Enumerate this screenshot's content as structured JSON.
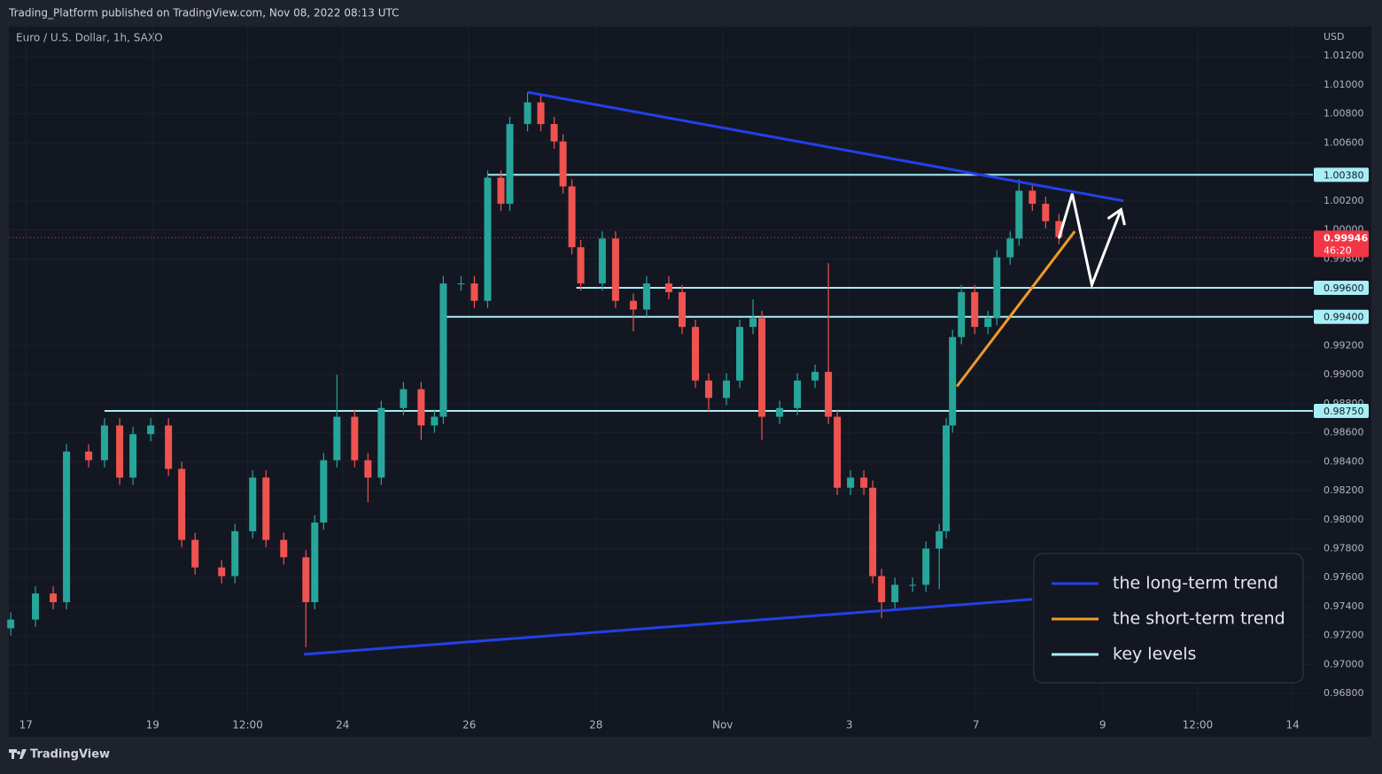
{
  "header": {
    "publisher": "Trading_Platform published on TradingView.com, Nov 08, 2022 08:13 UTC",
    "footer": "TradingView"
  },
  "chart_data": {
    "type": "candlestick",
    "title": "Euro / U.S. Dollar, 1h, SAXO",
    "y_axis_unit": "USD",
    "x": [
      -0.24,
      0.15,
      0.43,
      0.64,
      0.99,
      1.24,
      1.48,
      1.69,
      1.97,
      2.25,
      2.46,
      2.67,
      3.09,
      3.3,
      3.58,
      3.79,
      4.07,
      4.42,
      4.56,
      4.7,
      4.91,
      5.19,
      5.4,
      5.61,
      5.96,
      6.24,
      6.45,
      6.59,
      6.87,
      7.08,
      7.29,
      7.5,
      7.64,
      7.92,
      8.13,
      8.34,
      8.48,
      8.62,
      8.76,
      9.1,
      9.31,
      9.59,
      9.8,
      10.15,
      10.36,
      10.57,
      10.78,
      11.06,
      11.27,
      11.48,
      11.62,
      11.9,
      12.18,
      12.46,
      12.67,
      12.81,
      13.02,
      13.23,
      13.37,
      13.51,
      13.72,
      14.0,
      14.21,
      14.42,
      14.53,
      14.63,
      14.77,
      14.98,
      15.19,
      15.33,
      15.54,
      15.68,
      15.89,
      16.1,
      16.31
    ],
    "open": [
      0.9725,
      0.9731,
      0.9749,
      0.9743,
      0.9847,
      0.9841,
      0.9865,
      0.9829,
      0.9859,
      0.9865,
      0.9835,
      0.9786,
      0.9767,
      0.9761,
      0.9792,
      0.9829,
      0.9786,
      0.9774,
      0.9743,
      0.9798,
      0.9841,
      0.9871,
      0.9841,
      0.9829,
      0.9877,
      0.989,
      0.9865,
      0.9871,
      0.9963,
      0.9963,
      0.9951,
      1.0036,
      1.0018,
      1.0073,
      1.0088,
      1.0073,
      1.0061,
      1.003,
      0.9988,
      0.9963,
      0.9994,
      0.9951,
      0.9945,
      0.9963,
      0.9957,
      0.9933,
      0.9896,
      0.9884,
      0.9896,
      0.9933,
      0.9939,
      0.9871,
      0.9877,
      0.9896,
      0.9902,
      0.9871,
      0.9822,
      0.9829,
      0.9822,
      0.9761,
      0.9743,
      0.9755,
      0.9755,
      0.978,
      0.9792,
      0.9865,
      0.9926,
      0.9957,
      0.9933,
      0.9939,
      0.9981,
      0.9994,
      1.0027,
      1.0018,
      1.0006
    ],
    "high": [
      0.9736,
      0.9754,
      0.9754,
      0.9852,
      0.9852,
      0.987,
      0.987,
      0.9864,
      0.987,
      0.987,
      0.984,
      0.9791,
      0.9772,
      0.9797,
      0.9834,
      0.9834,
      0.9791,
      0.9779,
      0.9803,
      0.9846,
      0.99,
      0.9876,
      0.9846,
      0.9882,
      0.9895,
      0.9895,
      0.9876,
      0.9968,
      0.9968,
      0.9968,
      1.0041,
      1.0041,
      1.0078,
      1.0095,
      1.0093,
      1.0078,
      1.0066,
      1.0035,
      0.9993,
      0.9999,
      0.9999,
      0.9956,
      0.9968,
      0.9968,
      0.9962,
      0.9938,
      0.9901,
      0.9901,
      0.9938,
      0.9952,
      0.9944,
      0.9882,
      0.9901,
      0.9907,
      0.9977,
      0.9876,
      0.9834,
      0.9834,
      0.9827,
      0.9766,
      0.976,
      0.976,
      0.9785,
      0.9797,
      0.987,
      0.9931,
      0.9962,
      0.9962,
      0.9944,
      0.9986,
      0.9999,
      1.0035,
      1.0032,
      1.0023,
      1.0011
    ],
    "low": [
      0.972,
      0.9726,
      0.9738,
      0.9738,
      0.9836,
      0.9836,
      0.9824,
      0.9824,
      0.9854,
      0.983,
      0.9781,
      0.9762,
      0.9756,
      0.9756,
      0.9787,
      0.9781,
      0.9769,
      0.9712,
      0.9738,
      0.9793,
      0.9836,
      0.9836,
      0.9812,
      0.9824,
      0.9872,
      0.9855,
      0.986,
      0.9866,
      0.9958,
      0.9946,
      0.9946,
      1.0013,
      1.0013,
      1.0068,
      1.0068,
      1.0056,
      1.0025,
      0.9983,
      0.9958,
      0.9958,
      0.9946,
      0.993,
      0.994,
      0.9952,
      0.9928,
      0.9891,
      0.9875,
      0.9879,
      0.9891,
      0.9928,
      0.9855,
      0.9866,
      0.9872,
      0.9891,
      0.9866,
      0.9817,
      0.9817,
      0.9817,
      0.9756,
      0.9732,
      0.9738,
      0.975,
      0.975,
      0.9752,
      0.9787,
      0.986,
      0.9921,
      0.9928,
      0.9928,
      0.9934,
      0.9976,
      0.9989,
      1.0013,
      1.0001,
      0.999
    ],
    "close": [
      0.9731,
      0.9749,
      0.9743,
      0.9847,
      0.9841,
      0.9865,
      0.9829,
      0.9859,
      0.9865,
      0.9835,
      0.9786,
      0.9767,
      0.9761,
      0.9792,
      0.9829,
      0.9786,
      0.9774,
      0.9743,
      0.9798,
      0.9841,
      0.9871,
      0.9841,
      0.9829,
      0.9877,
      0.989,
      0.9865,
      0.9871,
      0.9963,
      0.9963,
      0.9951,
      1.0036,
      1.0018,
      1.0073,
      1.0088,
      1.0073,
      1.0061,
      1.003,
      0.9988,
      0.9963,
      0.9994,
      0.9951,
      0.9945,
      0.9963,
      0.9957,
      0.9933,
      0.9896,
      0.9884,
      0.9896,
      0.9933,
      0.9939,
      0.9871,
      0.9877,
      0.9896,
      0.9902,
      0.9871,
      0.9822,
      0.9829,
      0.9822,
      0.9761,
      0.9743,
      0.9755,
      0.9755,
      0.978,
      0.9792,
      0.9865,
      0.9926,
      0.9957,
      0.9933,
      0.9939,
      0.9981,
      0.9994,
      1.0027,
      1.0018,
      1.0006,
      0.9995
    ],
    "up_color": "#26a69a",
    "down_color": "#ef5350",
    "xlim": [
      -0.27,
      20.32
    ],
    "xticks": [
      {
        "value": 0,
        "label": "17"
      },
      {
        "value": 2,
        "label": "19"
      },
      {
        "value": 3.5,
        "label": "12:00"
      },
      {
        "value": 5,
        "label": "24"
      },
      {
        "value": 7,
        "label": "26"
      },
      {
        "value": 9,
        "label": "28"
      },
      {
        "value": 11,
        "label": "Nov"
      },
      {
        "value": 13,
        "label": "3"
      },
      {
        "value": 15,
        "label": "7"
      },
      {
        "value": 17,
        "label": "9"
      },
      {
        "value": 18.5,
        "label": "12:00"
      },
      {
        "value": 20,
        "label": "14"
      }
    ],
    "ylim": [
      0.96666,
      1.01403
    ],
    "yticks": [
      {
        "value": 1.012,
        "label": "1.01200"
      },
      {
        "value": 1.01,
        "label": "1.01000"
      },
      {
        "value": 1.008,
        "label": "1.00800"
      },
      {
        "value": 1.006,
        "label": "1.00600"
      },
      {
        "value": 1.002,
        "label": "1.00200"
      },
      {
        "value": 1.0,
        "label": "1.00000"
      },
      {
        "value": 0.998,
        "label": "0.99800"
      },
      {
        "value": 0.992,
        "label": "0.99200"
      },
      {
        "value": 0.99,
        "label": "0.99000"
      },
      {
        "value": 0.988,
        "label": "0.98800"
      },
      {
        "value": 0.986,
        "label": "0.98600"
      },
      {
        "value": 0.984,
        "label": "0.98400"
      },
      {
        "value": 0.982,
        "label": "0.98200"
      },
      {
        "value": 0.98,
        "label": "0.98000"
      },
      {
        "value": 0.978,
        "label": "0.97800"
      },
      {
        "value": 0.976,
        "label": "0.97600"
      },
      {
        "value": 0.974,
        "label": "0.97400"
      },
      {
        "value": 0.972,
        "label": "0.97200"
      },
      {
        "value": 0.97,
        "label": "0.97000"
      },
      {
        "value": 0.968,
        "label": "0.96800"
      }
    ],
    "grid": true,
    "last_price": {
      "value": 0.99946,
      "label": "0.99946",
      "countdown": "46:20",
      "color": "#f23645"
    },
    "trendlines": [
      {
        "name": "the long-term trend",
        "color": "#2440e8",
        "lines": [
          [
            [
              7.92,
              1.0095
            ],
            [
              17.33,
              1.002
            ]
          ],
          [
            [
              4.39,
              0.9707
            ],
            [
              15.89,
              0.9745
            ]
          ]
        ]
      },
      {
        "name": "the short-term trend",
        "color": "#f09a2a",
        "lines": [
          [
            [
              14.7,
              0.9892
            ],
            [
              16.56,
              0.9999
            ]
          ]
        ]
      }
    ],
    "key_levels": {
      "name": "key levels",
      "color": "#a8eef6",
      "levels": [
        {
          "value": 1.0038,
          "label": "1.00380",
          "from": 7.29
        },
        {
          "value": 0.996,
          "label": "0.99600",
          "from": 8.69
        },
        {
          "value": 0.994,
          "label": "0.99400",
          "from": 6.59
        },
        {
          "value": 0.9875,
          "label": "0.98750",
          "from": 1.24
        }
      ]
    },
    "projection": {
      "color": "#ffffff",
      "points": [
        [
          16.31,
          0.9994
        ],
        [
          16.52,
          1.0025
        ],
        [
          16.83,
          0.9962
        ],
        [
          17.29,
          1.0014
        ]
      ]
    }
  }
}
